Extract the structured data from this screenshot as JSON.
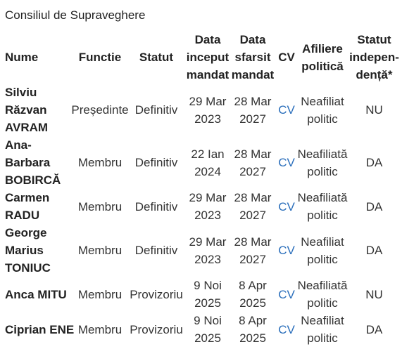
{
  "caption": "Consiliul de Supraveghere",
  "headers": {
    "nume": "Nume",
    "functie": "Functie",
    "statut": "Statut",
    "data_inceput": [
      "Data",
      "inceput",
      "mandat"
    ],
    "data_sfarsit": [
      "Data",
      "sfarsit",
      "mandat"
    ],
    "cv": "CV",
    "afiliere": [
      "Afiliere",
      "politică"
    ],
    "statut_independent": [
      "Statut",
      "indepen-",
      "dență*"
    ]
  },
  "colors": {
    "link": "#2a6ebb",
    "text": "#333333"
  },
  "rows": [
    {
      "name": [
        "Silviu",
        "Răzvan",
        "AVRAM"
      ],
      "functie": "Președinte",
      "statut": "Definitiv",
      "start": [
        "29 Mar",
        "2023"
      ],
      "end": [
        "28 Mar",
        "2027"
      ],
      "cv": "CV",
      "afiliere": [
        "Neafiliat",
        "politic"
      ],
      "independent": "NU"
    },
    {
      "name": [
        "Ana-",
        "Barbara",
        "BOBIRCĂ"
      ],
      "functie": "Membru",
      "statut": "Definitiv",
      "start": [
        "22 Ian",
        "2024"
      ],
      "end": [
        "28 Mar",
        "2027"
      ],
      "cv": "CV",
      "afiliere": [
        "Neafiliată",
        "politic"
      ],
      "independent": "DA"
    },
    {
      "name": [
        "Carmen",
        "RADU"
      ],
      "functie": "Membru",
      "statut": "Definitiv",
      "start": [
        "29 Mar",
        "2023"
      ],
      "end": [
        "28 Mar",
        "2027"
      ],
      "cv": "CV",
      "afiliere": [
        "Neafiliată",
        "politic"
      ],
      "independent": "DA"
    },
    {
      "name": [
        "George",
        "Marius",
        "TONIUC"
      ],
      "functie": "Membru",
      "statut": "Definitiv",
      "start": [
        "29 Mar",
        "2023"
      ],
      "end": [
        "28 Mar",
        "2027"
      ],
      "cv": "CV",
      "afiliere": [
        "Neafiliat",
        "politic"
      ],
      "independent": "DA"
    },
    {
      "name": [
        "Anca MITU"
      ],
      "functie": "Membru",
      "statut": "Provizoriu",
      "start": [
        "9 Noi",
        "2025"
      ],
      "end": [
        "8 Apr",
        "2025"
      ],
      "cv": "CV",
      "afiliere": [
        "Neafiliată",
        "politic"
      ],
      "independent": "NU"
    },
    {
      "name": [
        "Ciprian ENE"
      ],
      "functie": "Membru",
      "statut": "Provizoriu",
      "start": [
        "9 Noi",
        "2025"
      ],
      "end": [
        "8 Apr",
        "2025"
      ],
      "cv": "CV",
      "afiliere": [
        "Neafiliat",
        "politic"
      ],
      "independent": "DA"
    }
  ]
}
